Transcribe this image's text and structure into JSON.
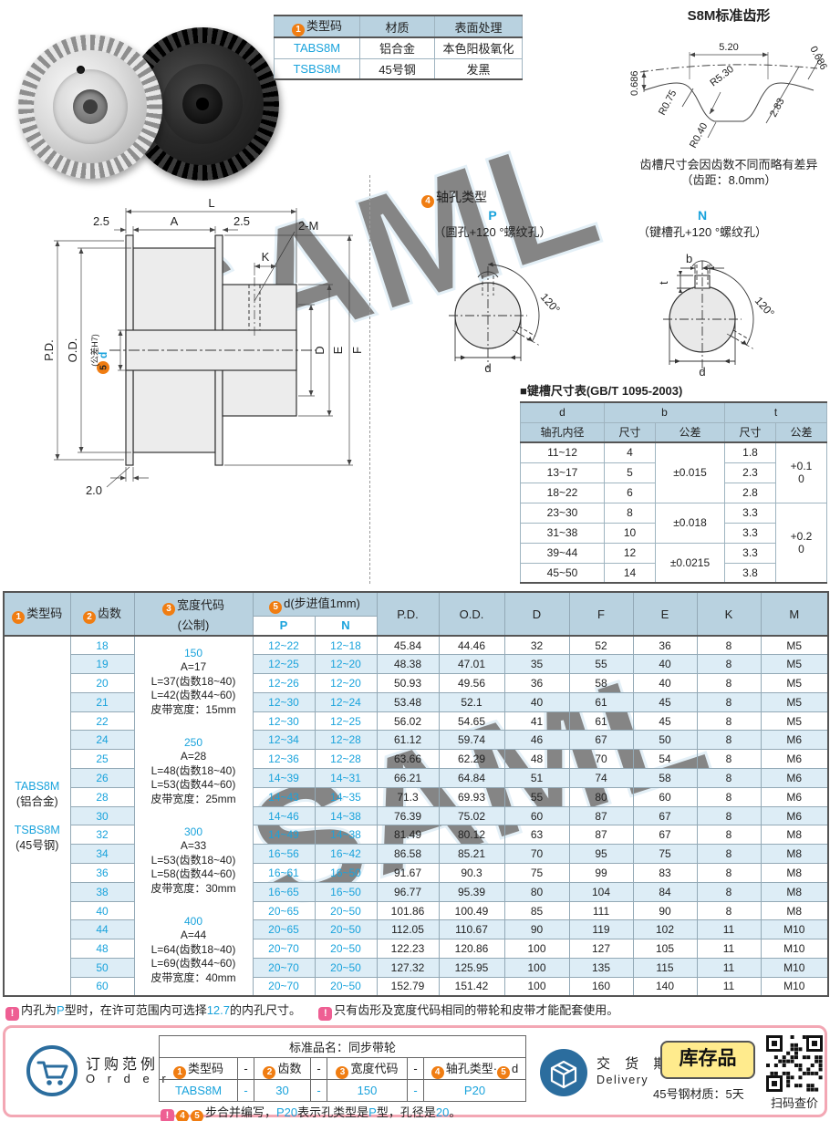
{
  "colors": {
    "cyan": "#1aa3dc",
    "orange": "#f07d12",
    "header_bg": "#b9d2e0",
    "row_alt": "#ddedf6",
    "pink": "#ee5f93",
    "steel_blue": "#2b6d9e",
    "badge_yellow": "#ffeb8d",
    "order_border": "#f3a7b4"
  },
  "misc": {
    "warning": "!"
  },
  "spec_table": {
    "headers": [
      {
        "badge": "1",
        "text": "类型码"
      },
      {
        "text": "材质"
      },
      {
        "text": "表面处理"
      }
    ],
    "rows": [
      [
        {
          "t": "TABS8M",
          "cyan": true
        },
        {
          "t": "铝合金"
        },
        {
          "t": "本色阳极氧化"
        }
      ],
      [
        {
          "t": "TSBS8M",
          "cyan": true
        },
        {
          "t": "45号钢"
        },
        {
          "t": "发黑"
        }
      ]
    ]
  },
  "tooth_profile": {
    "title": "S8M标准齿形",
    "dim_pitch_width": "5.20",
    "dim_height_left": "0.686",
    "dim_height_right": "0.686",
    "dim_r_shoulder": "R0.75",
    "dim_r_flank": "R5.30",
    "dim_depth": "2.83",
    "dim_r_root": "R0.40",
    "caption_line1": "齿槽尺寸会因齿数不同而略有差异",
    "caption_line2": "（齿距：8.0mm）"
  },
  "drawing": {
    "dim_L": "L",
    "dim_A": "A",
    "dim_left": "2.5",
    "dim_right": "2.5",
    "dim_K": "K",
    "dim_tap": "2-M",
    "dim_PD": "P.D.",
    "dim_OD": "O.D.",
    "bore_badge": "5",
    "bore_label": "d",
    "bore_tol": "(公差H7)",
    "dim_D": "D",
    "dim_E": "E",
    "dim_F": "F",
    "dim_flange": "2.0"
  },
  "shaft_holes": {
    "badge": "4",
    "title": "轴孔类型",
    "p": {
      "code": "P",
      "desc": "（圆孔+120 °螺纹孔）",
      "angle": "120°",
      "dim_d": "d"
    },
    "n": {
      "code": "N",
      "desc": "（键槽孔+120 °螺纹孔）",
      "angle": "120°",
      "dim_d": "d",
      "dim_b": "b",
      "dim_t": "t"
    }
  },
  "keyway_table": {
    "title": "■键槽尺寸表(GB/T 1095-2003)",
    "h_d": "d",
    "h_d2": "轴孔内径",
    "h_b": "b",
    "h_t": "t",
    "h_size": "尺寸",
    "h_tol": "公差",
    "rows": [
      {
        "d": "11~12",
        "b": "4",
        "t": "1.8"
      },
      {
        "d": "13~17",
        "b": "5",
        "t": "2.3"
      },
      {
        "d": "18~22",
        "b": "6",
        "t": "2.8"
      },
      {
        "d": "23~30",
        "b": "8",
        "t": "3.3"
      },
      {
        "d": "31~38",
        "b": "10",
        "t": "3.3"
      },
      {
        "d": "39~44",
        "b": "12",
        "t": "3.3"
      },
      {
        "d": "45~50",
        "b": "14",
        "t": "3.8"
      }
    ],
    "b_tols": [
      {
        "text": "±0.015",
        "rows": 3
      },
      {
        "text": "±0.018",
        "rows": 2
      },
      {
        "text": "±0.0215",
        "rows": 2
      }
    ],
    "t_tols": [
      {
        "upper": "+0.1",
        "lower": "0",
        "rows": 3
      },
      {
        "upper": "+0.2",
        "lower": "0",
        "rows": 4
      }
    ]
  },
  "main_table": {
    "h_type_badge": "1",
    "h_type": "类型码",
    "h_teeth_badge": "2",
    "h_teeth": "齿数",
    "h_width_badge": "3",
    "h_width": "宽度代码",
    "h_width2": "(公制)",
    "h_d_badge": "5",
    "h_d": "d(步进值1mm)",
    "h_p": "P",
    "h_n": "N",
    "h_pd": "P.D.",
    "h_od": "O.D.",
    "h_D": "D",
    "h_F": "F",
    "h_E": "E",
    "h_K": "K",
    "h_M": "M",
    "type_codes": [
      {
        "code": "TABS8M",
        "material": "(铝合金)"
      },
      {
        "code": "TSBS8M",
        "material": "(45号钢)"
      }
    ],
    "width_blocks": [
      {
        "code": "150",
        "lines": [
          "A=17",
          "L=37(齿数18~40)",
          "L=42(齿数44~60)",
          "皮带宽度：15mm"
        ]
      },
      {
        "code": "250",
        "lines": [
          "A=28",
          "L=48(齿数18~40)",
          "L=53(齿数44~60)",
          "皮带宽度：25mm"
        ]
      },
      {
        "code": "300",
        "lines": [
          "A=33",
          "L=53(齿数18~40)",
          "L=58(齿数44~60)",
          "皮带宽度：30mm"
        ]
      },
      {
        "code": "400",
        "lines": [
          "A=44",
          "L=64(齿数18~40)",
          "L=69(齿数44~60)",
          "皮带宽度：40mm"
        ]
      }
    ],
    "rows": [
      {
        "teeth": "18",
        "p": "12~22",
        "n": "12~18",
        "pd": "45.84",
        "od": "44.46",
        "D": "32",
        "F": "52",
        "E": "36",
        "K": "8",
        "M": "M5"
      },
      {
        "teeth": "19",
        "p": "12~25",
        "n": "12~20",
        "pd": "48.38",
        "od": "47.01",
        "D": "35",
        "F": "55",
        "E": "40",
        "K": "8",
        "M": "M5"
      },
      {
        "teeth": "20",
        "p": "12~26",
        "n": "12~20",
        "pd": "50.93",
        "od": "49.56",
        "D": "36",
        "F": "58",
        "E": "40",
        "K": "8",
        "M": "M5"
      },
      {
        "teeth": "21",
        "p": "12~30",
        "n": "12~24",
        "pd": "53.48",
        "od": "52.1",
        "D": "40",
        "F": "61",
        "E": "45",
        "K": "8",
        "M": "M5"
      },
      {
        "teeth": "22",
        "p": "12~30",
        "n": "12~25",
        "pd": "56.02",
        "od": "54.65",
        "D": "41",
        "F": "61",
        "E": "45",
        "K": "8",
        "M": "M5"
      },
      {
        "teeth": "24",
        "p": "12~34",
        "n": "12~28",
        "pd": "61.12",
        "od": "59.74",
        "D": "46",
        "F": "67",
        "E": "50",
        "K": "8",
        "M": "M6"
      },
      {
        "teeth": "25",
        "p": "12~36",
        "n": "12~28",
        "pd": "63.66",
        "od": "62.29",
        "D": "48",
        "F": "70",
        "E": "54",
        "K": "8",
        "M": "M6"
      },
      {
        "teeth": "26",
        "p": "14~39",
        "n": "14~31",
        "pd": "66.21",
        "od": "64.84",
        "D": "51",
        "F": "74",
        "E": "58",
        "K": "8",
        "M": "M6"
      },
      {
        "teeth": "28",
        "p": "14~43",
        "n": "14~35",
        "pd": "71.3",
        "od": "69.93",
        "D": "55",
        "F": "80",
        "E": "60",
        "K": "8",
        "M": "M6"
      },
      {
        "teeth": "30",
        "p": "14~46",
        "n": "14~38",
        "pd": "76.39",
        "od": "75.02",
        "D": "60",
        "F": "87",
        "E": "67",
        "K": "8",
        "M": "M6"
      },
      {
        "teeth": "32",
        "p": "14~49",
        "n": "14~38",
        "pd": "81.49",
        "od": "80.12",
        "D": "63",
        "F": "87",
        "E": "67",
        "K": "8",
        "M": "M8"
      },
      {
        "teeth": "34",
        "p": "16~56",
        "n": "16~42",
        "pd": "86.58",
        "od": "85.21",
        "D": "70",
        "F": "95",
        "E": "75",
        "K": "8",
        "M": "M8"
      },
      {
        "teeth": "36",
        "p": "16~61",
        "n": "16~50",
        "pd": "91.67",
        "od": "90.3",
        "D": "75",
        "F": "99",
        "E": "83",
        "K": "8",
        "M": "M8"
      },
      {
        "teeth": "38",
        "p": "16~65",
        "n": "16~50",
        "pd": "96.77",
        "od": "95.39",
        "D": "80",
        "F": "104",
        "E": "84",
        "K": "8",
        "M": "M8"
      },
      {
        "teeth": "40",
        "p": "20~65",
        "n": "20~50",
        "pd": "101.86",
        "od": "100.49",
        "D": "85",
        "F": "111",
        "E": "90",
        "K": "8",
        "M": "M8"
      },
      {
        "teeth": "44",
        "p": "20~65",
        "n": "20~50",
        "pd": "112.05",
        "od": "110.67",
        "D": "90",
        "F": "119",
        "E": "102",
        "K": "11",
        "M": "M10"
      },
      {
        "teeth": "48",
        "p": "20~70",
        "n": "20~50",
        "pd": "122.23",
        "od": "120.86",
        "D": "100",
        "F": "127",
        "E": "105",
        "K": "11",
        "M": "M10"
      },
      {
        "teeth": "50",
        "p": "20~70",
        "n": "20~50",
        "pd": "127.32",
        "od": "125.95",
        "D": "100",
        "F": "135",
        "E": "115",
        "K": "11",
        "M": "M10"
      },
      {
        "teeth": "60",
        "p": "20~70",
        "n": "20~50",
        "pd": "152.79",
        "od": "151.42",
        "D": "100",
        "F": "160",
        "E": "140",
        "K": "11",
        "M": "M10"
      }
    ]
  },
  "notes": {
    "note1": [
      {
        "t": "内孔为"
      },
      {
        "t": "P",
        "cyan": true
      },
      {
        "t": "型时，在许可范围内可选择"
      },
      {
        "t": "12.7",
        "cyan": true
      },
      {
        "t": "的内孔尺寸。"
      }
    ],
    "note2": [
      {
        "t": "只有齿形及宽度代码相同的带轮和皮带才能配套使用。"
      }
    ]
  },
  "order": {
    "label_cn": "订购范例",
    "label_en": "O r d e r",
    "table_title": "标准品名：同步带轮",
    "dash": "-",
    "items": [
      {
        "badges": [
          "1"
        ],
        "label": "类型码",
        "value": "TABS8M"
      },
      {
        "badges": [
          "2"
        ],
        "label": "齿数",
        "value": "30"
      },
      {
        "badges": [
          "3"
        ],
        "label": "宽度代码",
        "value": "150"
      },
      {
        "badges": [
          "4"
        ],
        "label": "轴孔类型·",
        "badges2": [
          "5"
        ],
        "label2": "d",
        "value": "P20"
      }
    ],
    "note": [
      {
        "badge": "4"
      },
      {
        "badge": "5"
      },
      {
        "t": "步合并编写，"
      },
      {
        "t": "P20",
        "cyan": true
      },
      {
        "t": "表示孔类型是"
      },
      {
        "t": "P",
        "cyan": true
      },
      {
        "t": "型，孔径是"
      },
      {
        "t": "20",
        "cyan": true
      },
      {
        "t": "。"
      }
    ],
    "delivery_cn": "交 货 期",
    "delivery_en": "Delivery",
    "stock_badge": "库存品",
    "stock_note": "45号钢材质：5天",
    "qr_caption": "扫码查价"
  }
}
